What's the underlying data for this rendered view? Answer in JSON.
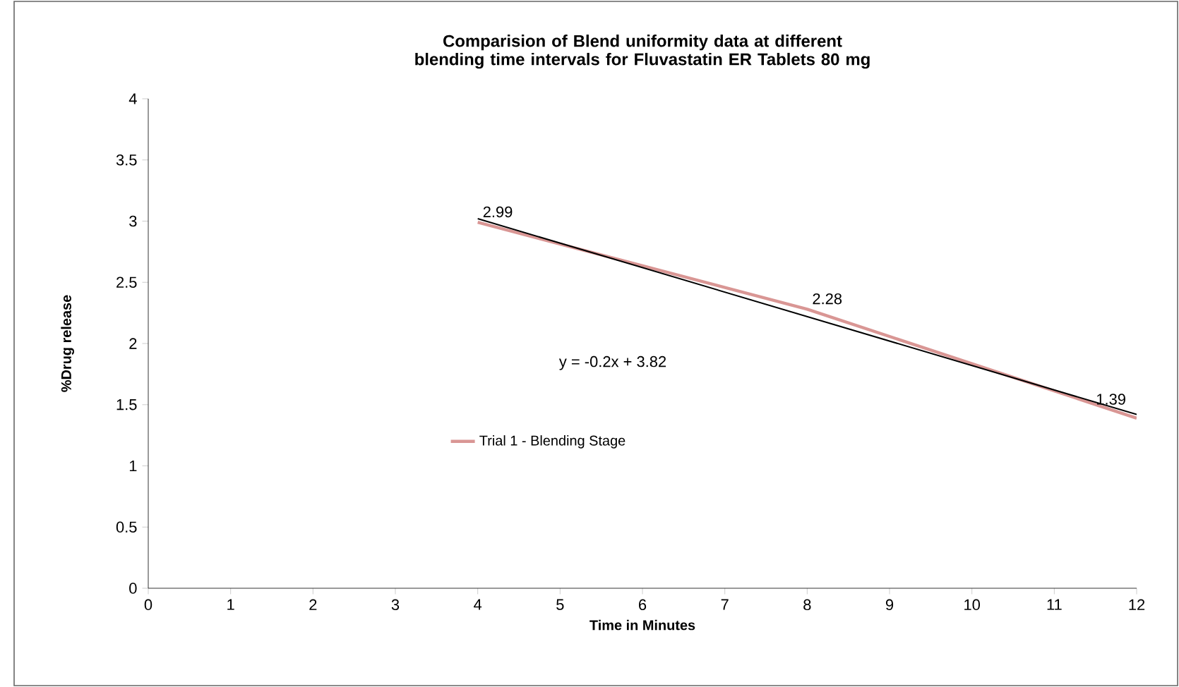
{
  "chart_data": {
    "type": "line",
    "title": "Comparision of Blend uniformity data  at different blending  time intervals for Fluvastatin ER Tablets 80 mg",
    "xlabel": "Time in Minutes",
    "ylabel": "%Drug release",
    "series": [
      {
        "name": "Trial 1 - Blending Stage",
        "color": "#d99694",
        "x": [
          4,
          8,
          12
        ],
        "values": [
          2.99,
          2.28,
          1.39
        ],
        "value_labels": [
          "2.99",
          "2.28",
          "1.39"
        ]
      },
      {
        "type": "line",
        "color": "#000000",
        "x": [
          4,
          12
        ],
        "values": [
          3.02,
          1.42
        ]
      }
    ],
    "annotations": [
      "y = -0.2x + 3.82"
    ],
    "xlim": [
      0,
      12
    ],
    "xticks": [
      0,
      1,
      2,
      3,
      4,
      5,
      6,
      7,
      8,
      9,
      10,
      11,
      12
    ],
    "ylim": [
      0,
      4
    ],
    "yticks": [
      0,
      0.5,
      1,
      1.5,
      2,
      2.5,
      3,
      3.5,
      4
    ],
    "grid": false,
    "legend": "left",
    "marker": "none",
    "line_style": "solid"
  }
}
